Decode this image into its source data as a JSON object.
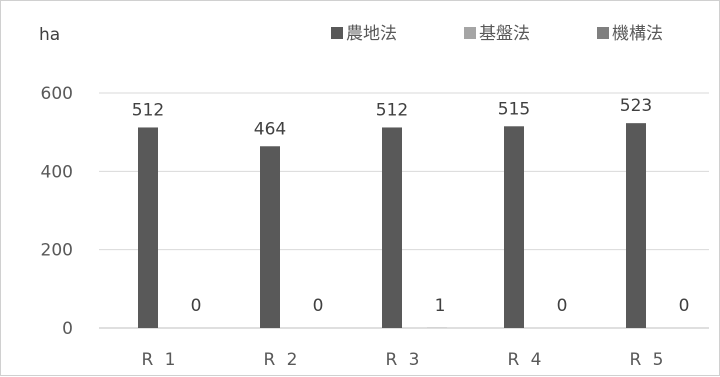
{
  "chart_data": {
    "type": "bar",
    "ylabel": "ha",
    "categories": [
      "R 1",
      "R 2",
      "R 3",
      "R 4",
      "R 5"
    ],
    "series": [
      {
        "name": "農地法",
        "color": "#595959",
        "values": [
          512,
          464,
          512,
          515,
          523
        ],
        "labels": [
          "512",
          "464",
          "512",
          "515",
          "523"
        ]
      },
      {
        "name": "基盤法",
        "color": "#a5a5a5",
        "values": [
          0,
          0,
          1,
          0,
          0
        ],
        "labels": [
          "0",
          "0",
          "1",
          "0",
          "0"
        ]
      },
      {
        "name": "機構法",
        "color": "#7f7f7f",
        "values": [
          null,
          null,
          null,
          null,
          0
        ],
        "labels": [
          "",
          "",
          "",
          "",
          "0"
        ]
      }
    ],
    "ylim": [
      0,
      600
    ],
    "yticks": [
      "0",
      "200",
      "400",
      "600"
    ],
    "grid": true,
    "legend_position": "top-right"
  }
}
